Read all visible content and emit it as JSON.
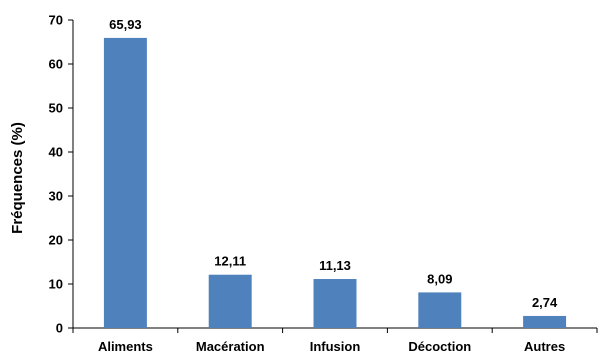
{
  "chart_data": {
    "type": "bar",
    "categories": [
      "Aliments",
      "Macération",
      "Infusion",
      "Décoction",
      "Autres"
    ],
    "values": [
      65.93,
      12.11,
      11.13,
      8.09,
      2.74
    ],
    "data_labels": [
      "65,93",
      "12,11",
      "11,13",
      "8,09",
      "2,74"
    ],
    "ylabel": "Fréquences (%)",
    "xlabel": "",
    "title": "",
    "ylim": [
      0,
      70
    ],
    "yticks": [
      0,
      10,
      20,
      30,
      40,
      50,
      60,
      70
    ],
    "grid": false,
    "legend": "none",
    "colors": {
      "bar": "#4f81bd",
      "axis": "#000000"
    }
  }
}
